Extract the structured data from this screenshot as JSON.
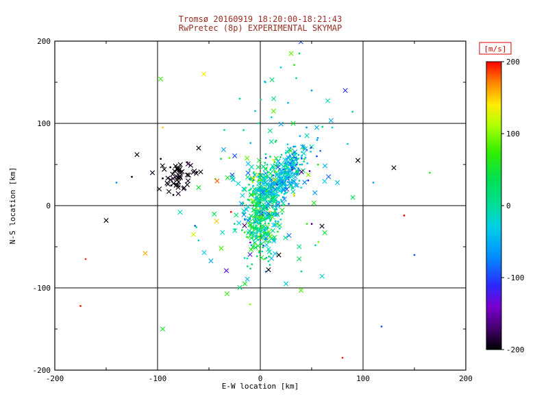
{
  "chart_data": {
    "type": "scatter",
    "title_line1": "Tromsø 20160919 18:20:00-18:21:43",
    "title_line2": "RwPretec (8p) EXPERIMENTAL SKYMAP",
    "xlabel": "E-W location [km]",
    "ylabel": "N-S location [km]",
    "xlim": [
      -200,
      200
    ],
    "ylim": [
      -200,
      200
    ],
    "xticks": [
      -200,
      -100,
      0,
      100,
      200
    ],
    "yticks": [
      -200,
      -100,
      0,
      100,
      200
    ],
    "grid": true,
    "grid_lines": [
      -100,
      0,
      100
    ],
    "title_color": "#992e22",
    "axis_color": "#000000",
    "background_color": "#ffffff",
    "colorbar": {
      "label": "[m/s]",
      "label_color": "#dd0000",
      "vmin": -200,
      "vmax": 200,
      "ticks": [
        200,
        100,
        0,
        -100,
        -200
      ],
      "stops": [
        {
          "v": -200,
          "color": "#000000"
        },
        {
          "v": -170,
          "color": "#45006e"
        },
        {
          "v": -140,
          "color": "#7a00d0"
        },
        {
          "v": -110,
          "color": "#2a2aff"
        },
        {
          "v": -70,
          "color": "#0090ff"
        },
        {
          "v": -30,
          "color": "#00cfe8"
        },
        {
          "v": 0,
          "color": "#00dd99"
        },
        {
          "v": 35,
          "color": "#00e055"
        },
        {
          "v": 75,
          "color": "#33ee00"
        },
        {
          "v": 110,
          "color": "#aaff00"
        },
        {
          "v": 140,
          "color": "#ffee00"
        },
        {
          "v": 170,
          "color": "#ff8800"
        },
        {
          "v": 200,
          "color": "#ff0000"
        }
      ]
    },
    "clusters": [
      {
        "name": "core",
        "cx": 2,
        "cy": -8,
        "sx": 9,
        "sy": 28,
        "slope": 0.3,
        "count": 380,
        "v_mean": 15,
        "v_sd": 45,
        "x_frac": 0.45,
        "seed": 11
      },
      {
        "name": "upper-right",
        "cx": 25,
        "cy": 38,
        "sx": 11,
        "sy": 12,
        "slope": 1.4,
        "count": 300,
        "v_mean": -35,
        "v_sd": 32,
        "x_frac": 0.35,
        "seed": 22
      },
      {
        "name": "black-patch",
        "cx": -80,
        "cy": 35,
        "sx": 9,
        "sy": 10,
        "slope": 0.1,
        "count": 55,
        "v_mean": -198,
        "v_sd": 8,
        "x_frac": 0.85,
        "seed": 33
      },
      {
        "name": "halo",
        "cx": 8,
        "cy": 10,
        "sx": 33,
        "sy": 55,
        "slope": 0.3,
        "count": 130,
        "v_mean": 0,
        "v_sd": 70,
        "x_frac": 0.5,
        "seed": 44
      }
    ],
    "outlier_points": [
      [
        -97,
        154,
        80,
        "x"
      ],
      [
        -55,
        160,
        140,
        "x"
      ],
      [
        -150,
        -18,
        -200,
        "x"
      ],
      [
        -170,
        -65,
        190,
        "d"
      ],
      [
        -175,
        -122,
        195,
        "d"
      ],
      [
        -112,
        -58,
        160,
        "x"
      ],
      [
        -95,
        -150,
        60,
        "x"
      ],
      [
        -15,
        -95,
        60,
        "x"
      ],
      [
        8,
        -78,
        -200,
        "x"
      ],
      [
        18,
        -60,
        -200,
        "x"
      ],
      [
        80,
        -185,
        195,
        "d"
      ],
      [
        118,
        -147,
        -90,
        "d"
      ],
      [
        140,
        -12,
        200,
        "d"
      ],
      [
        130,
        46,
        -200,
        "x"
      ],
      [
        95,
        55,
        -195,
        "x"
      ],
      [
        75,
        28,
        -40,
        "x"
      ],
      [
        90,
        10,
        30,
        "x"
      ],
      [
        60,
        -25,
        -190,
        "x"
      ],
      [
        33,
        171,
        60,
        "d"
      ],
      [
        27,
        125,
        -50,
        "d"
      ],
      [
        32,
        100,
        50,
        "x"
      ],
      [
        45,
        95,
        -60,
        "d"
      ],
      [
        70,
        95,
        -30,
        "d"
      ],
      [
        -95,
        95,
        150,
        "d"
      ],
      [
        -60,
        70,
        -200,
        "x"
      ],
      [
        -42,
        30,
        180,
        "x"
      ],
      [
        -60,
        22,
        50,
        "x"
      ],
      [
        -78,
        -8,
        -10,
        "x"
      ],
      [
        -30,
        58,
        90,
        "d"
      ],
      [
        55,
        60,
        -100,
        "d"
      ],
      [
        48,
        42,
        -150,
        "d"
      ],
      [
        85,
        75,
        -20,
        "d"
      ],
      [
        110,
        28,
        -60,
        "d"
      ],
      [
        -20,
        130,
        20,
        "d"
      ],
      [
        -5,
        115,
        -40,
        "d"
      ],
      [
        5,
        150,
        -20,
        "d"
      ],
      [
        38,
        185,
        40,
        "d"
      ],
      [
        -120,
        62,
        -200,
        "x"
      ],
      [
        -105,
        40,
        -190,
        "x"
      ],
      [
        -125,
        35,
        -200,
        "d"
      ],
      [
        -140,
        28,
        -60,
        "d"
      ],
      [
        -65,
        -35,
        120,
        "x"
      ],
      [
        -38,
        -52,
        80,
        "x"
      ],
      [
        25,
        -95,
        -30,
        "x"
      ],
      [
        40,
        -80,
        20,
        "d"
      ],
      [
        -10,
        -120,
        100,
        "d"
      ],
      [
        55,
        95,
        -45,
        "x"
      ],
      [
        150,
        -60,
        -100,
        "d"
      ],
      [
        165,
        40,
        60,
        "d"
      ],
      [
        -35,
        92,
        10,
        "d"
      ],
      [
        20,
        168,
        -30,
        "d"
      ],
      [
        35,
        155,
        0,
        "d"
      ],
      [
        50,
        140,
        -70,
        "d"
      ],
      [
        30,
        185,
        90,
        "x"
      ]
    ]
  }
}
